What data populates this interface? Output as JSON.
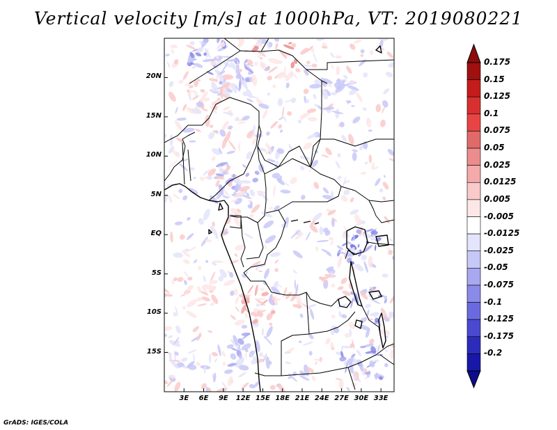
{
  "title": "Vertical velocity [m/s] at 1000hPa, VT: 2019080221",
  "footer": "GrADS: IGES/COLA",
  "map": {
    "projection": "lat-lon",
    "region": "Central Africa",
    "lon_range": [
      0,
      35
    ],
    "lat_range": [
      -20,
      25
    ],
    "lat_ticks": [
      {
        "value": 20,
        "label": "20N"
      },
      {
        "value": 15,
        "label": "15N"
      },
      {
        "value": 10,
        "label": "10N"
      },
      {
        "value": 5,
        "label": "5N"
      },
      {
        "value": 0,
        "label": "EQ"
      },
      {
        "value": -5,
        "label": "5S"
      },
      {
        "value": -10,
        "label": "10S"
      },
      {
        "value": -15,
        "label": "15S"
      }
    ],
    "lon_ticks": [
      {
        "value": 3,
        "label": "3E"
      },
      {
        "value": 6,
        "label": "6E"
      },
      {
        "value": 9,
        "label": "9E"
      },
      {
        "value": 12,
        "label": "12E"
      },
      {
        "value": 15,
        "label": "15E"
      },
      {
        "value": 18,
        "label": "18E"
      },
      {
        "value": 21,
        "label": "21E"
      },
      {
        "value": 24,
        "label": "24E"
      },
      {
        "value": 27,
        "label": "27E"
      },
      {
        "value": 30,
        "label": "30E"
      },
      {
        "value": 33,
        "label": "33E"
      }
    ],
    "coast_color": "#000000",
    "border_color": "#000000"
  },
  "colorbar": {
    "levels": [
      {
        "label": "0.175",
        "color": "#a01010"
      },
      {
        "label": "0.15",
        "color": "#c41c1c"
      },
      {
        "label": "0.125",
        "color": "#d83030"
      },
      {
        "label": "0.1",
        "color": "#e84444"
      },
      {
        "label": "0.075",
        "color": "#e06a6a"
      },
      {
        "label": "0.05",
        "color": "#ec8c8c"
      },
      {
        "label": "0.025",
        "color": "#f4aaaa"
      },
      {
        "label": "0.0125",
        "color": "#facaca"
      },
      {
        "label": "0.005",
        "color": "#fde6e6"
      },
      {
        "label": "-0.005",
        "color": "#ffffff"
      },
      {
        "label": "-0.0125",
        "color": "#e4e4fc"
      },
      {
        "label": "-0.025",
        "color": "#c8c8f8"
      },
      {
        "label": "-0.05",
        "color": "#a8a8f0"
      },
      {
        "label": "-0.075",
        "color": "#8a8ae8"
      },
      {
        "label": "-0.1",
        "color": "#6a6ae0"
      },
      {
        "label": "-0.125",
        "color": "#4a4ad0"
      },
      {
        "label": "-0.175",
        "color": "#2c2cbc"
      },
      {
        "label": "-0.2",
        "color": "#1818a8"
      }
    ],
    "top_arrow_color": "#8c0c0c",
    "bottom_arrow_color": "#0c0c8c"
  }
}
